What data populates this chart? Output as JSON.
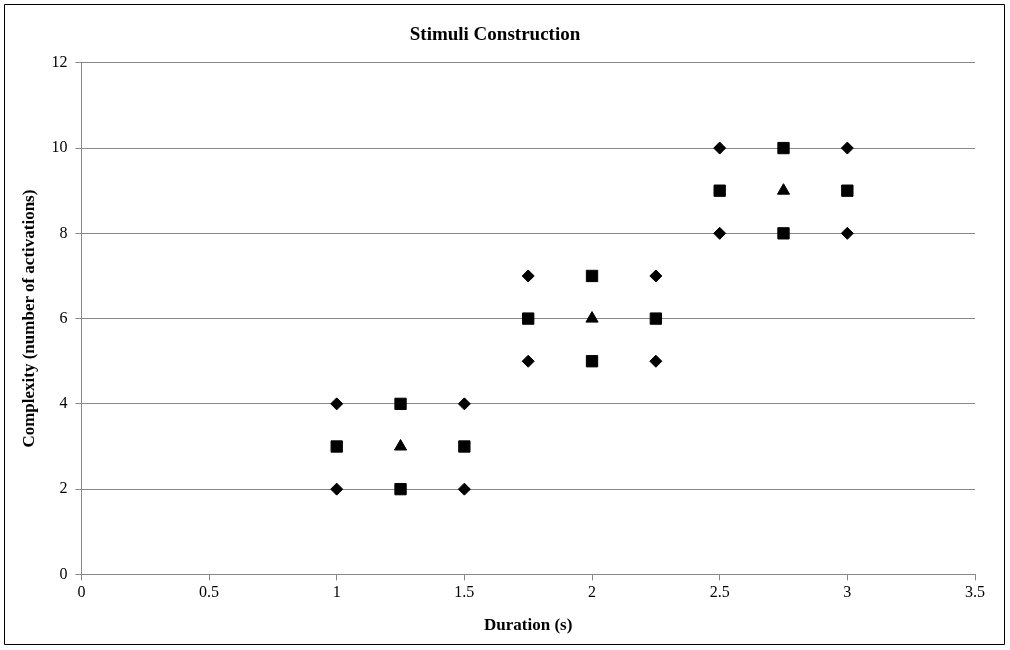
{
  "chart_data": {
    "type": "scatter",
    "title": "Stimuli Construction",
    "xlabel": "Duration (s)",
    "ylabel": "Complexity (number of activations)",
    "xlim": [
      0,
      3.5
    ],
    "xticks": [
      0,
      0.5,
      1,
      1.5,
      2,
      2.5,
      3,
      3.5
    ],
    "ylim": [
      0,
      12
    ],
    "yticks": [
      0,
      2,
      4,
      6,
      8,
      10,
      12
    ],
    "grid": "y",
    "legend": false,
    "series": [
      {
        "color": "#000000",
        "marker": "diamond",
        "x": [
          1,
          1,
          1.5,
          1.5,
          1.75,
          1.75,
          2.25,
          2.25,
          2.5,
          2.5,
          3,
          3
        ],
        "values": [
          2,
          4,
          2,
          4,
          5,
          7,
          5,
          7,
          8,
          10,
          8,
          10
        ]
      },
      {
        "color": "#000000",
        "marker": "square",
        "x": [
          1,
          1.25,
          1.25,
          1.5,
          1.75,
          2,
          2,
          2.25,
          2.5,
          2.75,
          2.75,
          3
        ],
        "values": [
          3,
          2,
          4,
          3,
          6,
          5,
          7,
          6,
          9,
          8,
          10,
          9
        ]
      },
      {
        "color": "#000000",
        "marker": "triangle",
        "x": [
          1.25,
          2,
          2.75
        ],
        "values": [
          3,
          6,
          9
        ]
      }
    ]
  }
}
